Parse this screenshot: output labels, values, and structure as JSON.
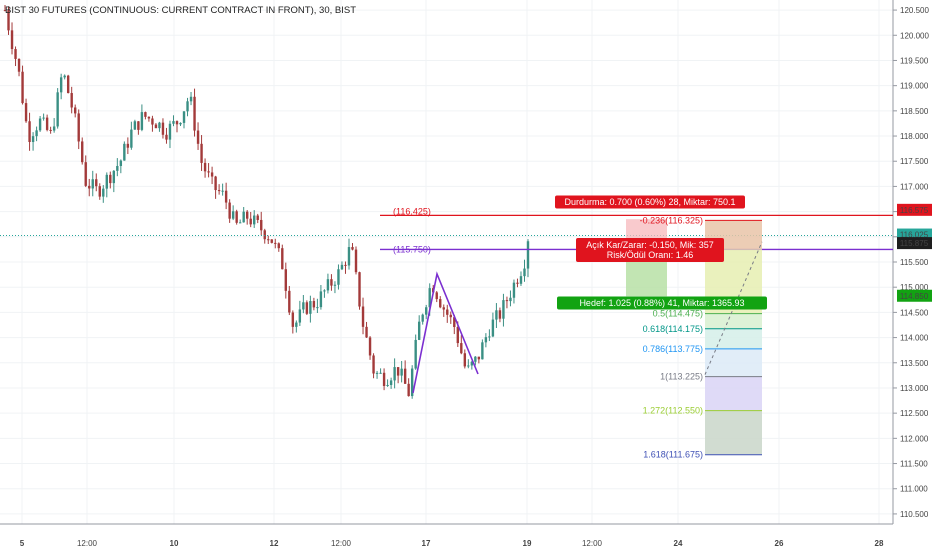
{
  "header": {
    "title": "BIST 30 FUTURES (CONTINUOUS: CURRENT CONTRACT IN FRONT), 30, BIST"
  },
  "colors": {
    "up": "#3a8f84",
    "down": "#a33a3a",
    "pattern": "#7b2fd0",
    "stop_line": "#e0141e",
    "entry_line": "#7b2fd0",
    "last_price": "#26a69a",
    "stop_badge": "#e0141e",
    "entry_badge": "#1e1e1e",
    "target_badge": "#12a312"
  },
  "chart_data": {
    "type": "candlestick",
    "title": "BIST 30 FUTURES (CONTINUOUS: CURRENT CONTRACT IN FRONT), 30, BIST",
    "ylim": [
      110.3,
      120.7
    ],
    "y_ticks": [
      "120.500",
      "120.000",
      "119.500",
      "119.000",
      "118.500",
      "118.000",
      "117.500",
      "117.000",
      "116.500",
      "116.000",
      "115.500",
      "115.000",
      "114.500",
      "114.000",
      "113.500",
      "113.000",
      "112.500",
      "112.000",
      "111.500",
      "111.000",
      "110.500"
    ],
    "x_ticks": [
      "5",
      "12:00",
      "10",
      "12",
      "12:00",
      "17",
      "19",
      "12:00",
      "24",
      "26",
      "28"
    ],
    "close_path": [
      [
        0,
        120.5
      ],
      [
        0.035,
        119.3
      ],
      [
        0.06,
        118.0
      ],
      [
        0.09,
        118.3
      ],
      [
        0.12,
        118.0
      ],
      [
        0.15,
        119.3
      ],
      [
        0.18,
        118.4
      ],
      [
        0.21,
        117.1
      ],
      [
        0.24,
        116.9
      ],
      [
        0.27,
        117.2
      ],
      [
        0.3,
        117.5
      ],
      [
        0.33,
        118.1
      ],
      [
        0.36,
        118.4
      ],
      [
        0.39,
        118.3
      ],
      [
        0.42,
        118.1
      ],
      [
        0.45,
        118.3
      ],
      [
        0.48,
        118.8
      ],
      [
        0.51,
        117.5
      ],
      [
        0.54,
        117.0
      ],
      [
        0.57,
        116.8
      ],
      [
        0.6,
        116.2
      ],
      [
        0.63,
        116.4
      ],
      [
        0.66,
        116.2
      ],
      [
        0.69,
        116.0
      ],
      [
        0.72,
        115.5
      ],
      [
        0.75,
        114.2
      ],
      [
        0.78,
        114.6
      ],
      [
        0.81,
        114.7
      ],
      [
        0.84,
        115.0
      ],
      [
        0.87,
        115.3
      ],
      [
        0.9,
        115.8
      ],
      [
        0.93,
        114.3
      ],
      [
        0.96,
        113.3
      ],
      [
        0.99,
        113.2
      ],
      [
        1.02,
        113.4
      ],
      [
        1.05,
        112.9
      ],
      [
        1.08,
        114.4
      ],
      [
        1.11,
        115.1
      ],
      [
        1.14,
        114.6
      ],
      [
        1.17,
        114.2
      ],
      [
        1.2,
        113.3
      ],
      [
        1.23,
        113.6
      ],
      [
        1.26,
        114.2
      ],
      [
        1.29,
        114.5
      ],
      [
        1.32,
        115.0
      ],
      [
        1.35,
        115.5
      ],
      [
        1.36,
        116.0
      ]
    ],
    "harmonic_pattern": [
      [
        413,
        393
      ],
      [
        437,
        274
      ],
      [
        478,
        374
      ]
    ],
    "levels": [
      {
        "price": 116.425,
        "label": "(116.425)",
        "color": "#e0141e"
      },
      {
        "price": 115.75,
        "label": "(115.750)",
        "color": "#7b2fd0"
      },
      {
        "price": 116.025,
        "label": "116.025",
        "color": "#26a69a"
      }
    ],
    "fib_levels": [
      {
        "ratio": "-0.236",
        "price": "116.325",
        "color": "#e0141e"
      },
      {
        "ratio": "0.5",
        "price": "114.475",
        "color": "#4caf50"
      },
      {
        "ratio": "0.618",
        "price": "114.175",
        "color": "#009688"
      },
      {
        "ratio": "0.786",
        "price": "113.775",
        "color": "#2196f3"
      },
      {
        "ratio": "1",
        "price": "113.225",
        "color": "#787b86"
      },
      {
        "ratio": "1.272",
        "price": "112.550",
        "color": "#9acd32"
      },
      {
        "ratio": "1.618",
        "price": "111.675",
        "color": "#3f51b5"
      }
    ],
    "annotations": {
      "stop": "Durdurma: 0.700 (0.60%) 28, Miktar: 750.1",
      "entry_line1": "Açık Kar/Zarar: -0.150, Mik: 357",
      "entry_line2": "Risk/Ödül Oranı: 1.46",
      "target": "Hedef: 1.025 (0.88%) 41, Miktar: 1365.93"
    },
    "axis_badges": [
      {
        "value": "116.575",
        "bg": "#e0141e",
        "fg": "#ffffff"
      },
      {
        "value": "116.025",
        "bg": "#26a69a",
        "fg": "#ffffff"
      },
      {
        "value": "115.875",
        "bg": "#1e1e1e",
        "fg": "#ffffff"
      },
      {
        "value": "114.850",
        "bg": "#12a312",
        "fg": "#ffffff"
      }
    ]
  }
}
